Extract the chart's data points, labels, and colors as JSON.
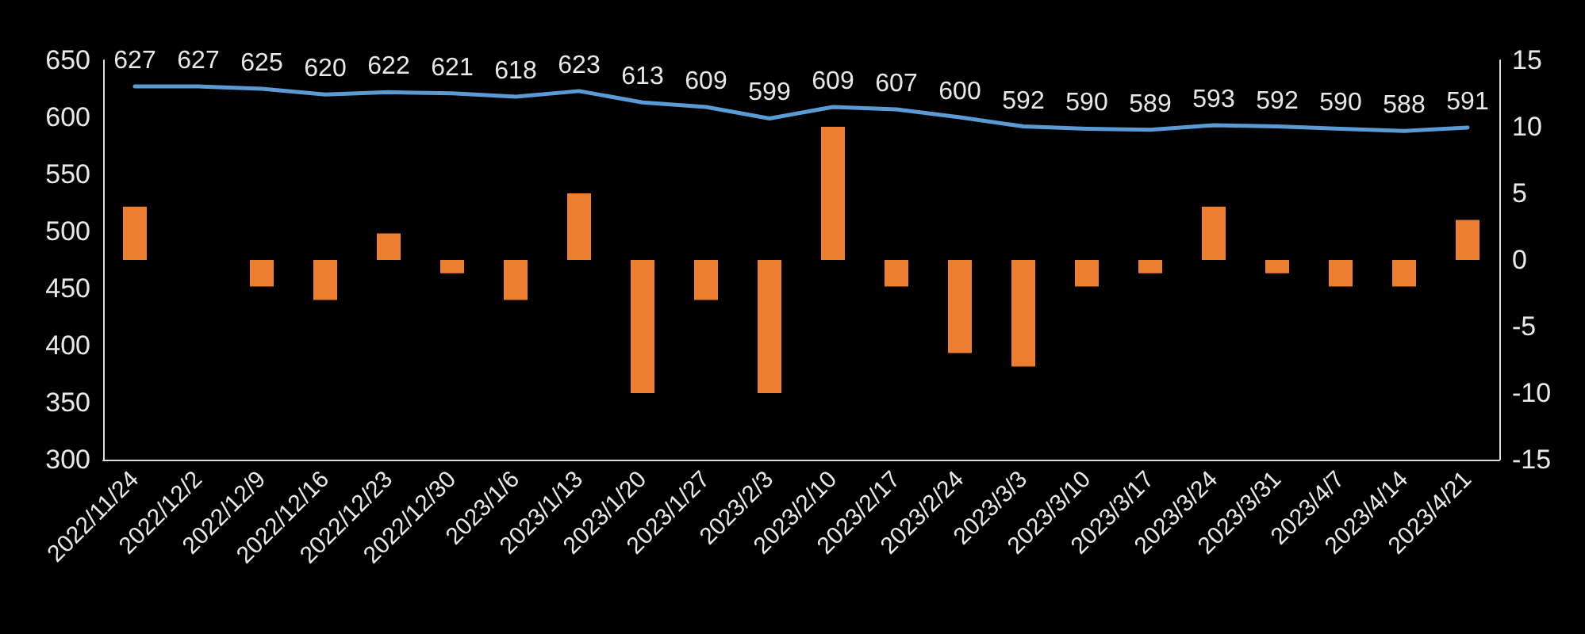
{
  "chart_data": {
    "type": "line",
    "categories": [
      "2022/11/24",
      "2022/12/2",
      "2022/12/9",
      "2022/12/16",
      "2022/12/23",
      "2022/12/30",
      "2023/1/6",
      "2023/1/13",
      "2023/1/20",
      "2023/1/27",
      "2023/2/3",
      "2023/2/10",
      "2023/2/17",
      "2023/2/24",
      "2023/3/3",
      "2023/3/10",
      "2023/3/17",
      "2023/3/24",
      "2023/3/31",
      "2023/4/7",
      "2023/4/14",
      "2023/4/21"
    ],
    "series": [
      {
        "type": "bar",
        "axis": "y2",
        "color": "#ed7d31",
        "values": [
          4,
          0,
          -2,
          -3,
          2,
          -1,
          -3,
          5,
          -10,
          -3,
          -10,
          10,
          -2,
          -7,
          -8,
          -2,
          -1,
          4,
          -1,
          -2,
          -2,
          3
        ]
      },
      {
        "color": "#5b9bd5",
        "values": [
          627,
          627,
          625,
          620,
          622,
          621,
          618,
          623,
          613,
          609,
          599,
          609,
          607,
          600,
          592,
          590,
          589,
          593,
          592,
          590,
          588,
          591
        ],
        "value_labels": [
          "627",
          "627",
          "625",
          "620",
          "622",
          "621",
          "618",
          "623",
          "613",
          "609",
          "599",
          "609",
          "607",
          "600",
          "592",
          "590",
          "589",
          "593",
          "592",
          "590",
          "588",
          "591"
        ]
      }
    ],
    "ylim": [
      300,
      650
    ],
    "yticks": [
      300,
      350,
      400,
      450,
      500,
      550,
      600,
      650
    ],
    "y2lim": [
      -15,
      15
    ],
    "y2ticks": [
      -15,
      -10,
      -5,
      0,
      5,
      10,
      15
    ],
    "marker": "none"
  }
}
